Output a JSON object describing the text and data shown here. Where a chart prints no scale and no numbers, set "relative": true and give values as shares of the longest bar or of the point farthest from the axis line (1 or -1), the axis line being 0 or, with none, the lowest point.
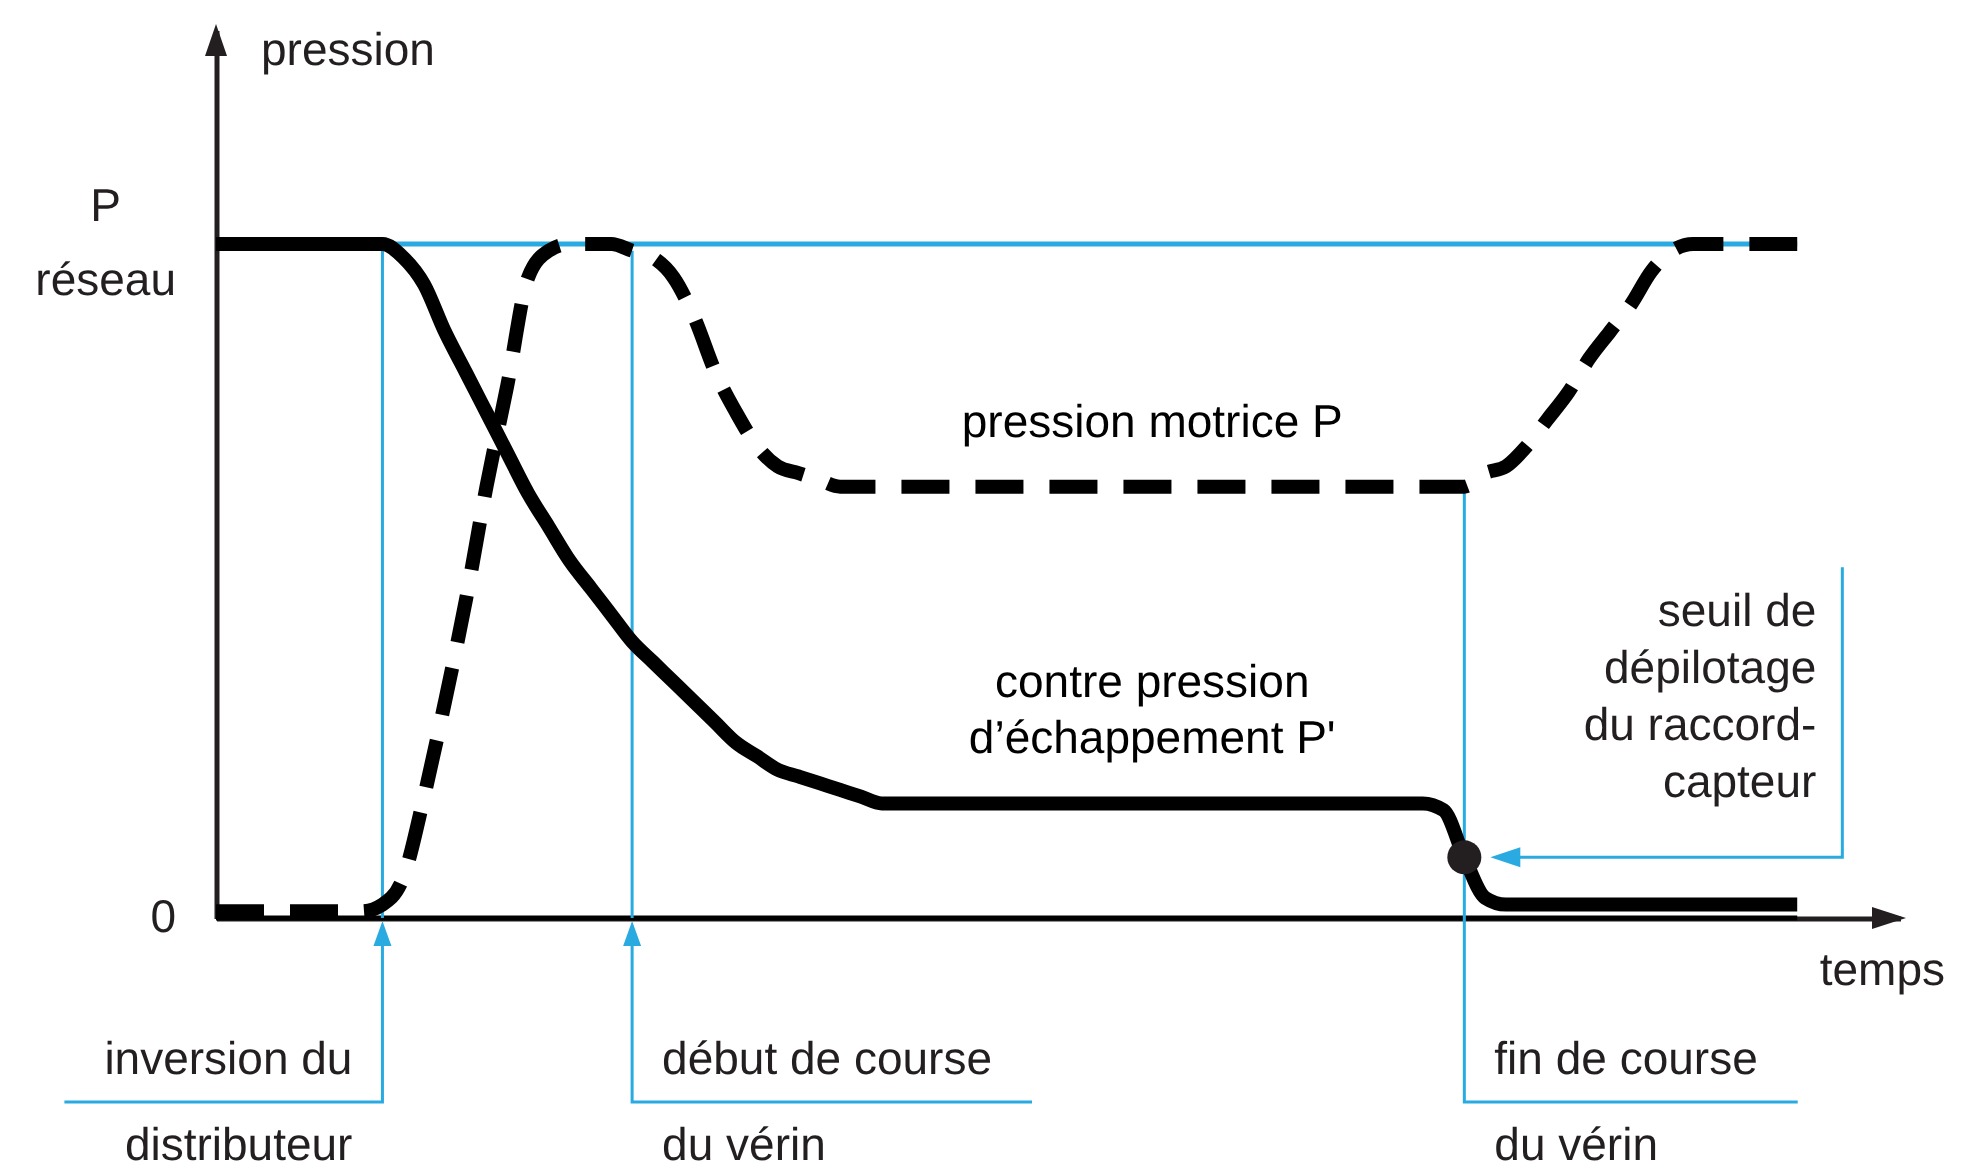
{
  "chart_data": {
    "type": "line",
    "relative": true,
    "xlabel": "temps",
    "ylabel": "pression",
    "categories": [
      null,
      null,
      null,
      null,
      null,
      null,
      null,
      null,
      null,
      null,
      null,
      null,
      null,
      null,
      null,
      null,
      null,
      null,
      null,
      null,
      null,
      null,
      null,
      null,
      null,
      null,
      null,
      null,
      null,
      null,
      null,
      null,
      null,
      null,
      null,
      null,
      null,
      null,
      null,
      null,
      null,
      null,
      null,
      null,
      null,
      null,
      null,
      null,
      null,
      null,
      null,
      null,
      null,
      null,
      null,
      null,
      null,
      null,
      null,
      null,
      null,
      null,
      null,
      null,
      null,
      null,
      null,
      null,
      null,
      null,
      null,
      null,
      null,
      null,
      null,
      null,
      null
    ],
    "series": [
      {
        "name": "contre pression d’échappement P'",
        "color": "#000000",
        "line_style": "solid",
        "values": [
          1,
          1,
          1,
          1,
          1,
          1,
          1,
          1,
          1,
          0.98,
          0.94,
          0.87,
          0.81,
          0.75,
          0.69,
          0.63,
          0.58,
          0.53,
          0.49,
          0.45,
          0.41,
          0.38,
          0.35,
          0.32,
          0.29,
          0.26,
          0.24,
          0.22,
          0.21,
          0.2,
          0.19,
          0.18,
          0.17,
          0.17,
          0.17,
          0.17,
          0.17,
          0.17,
          0.17,
          0.17,
          0.17,
          0.17,
          0.17,
          0.17,
          0.17,
          0.17,
          0.17,
          0.17,
          0.17,
          0.17,
          0.17,
          0.17,
          0.17,
          0.17,
          0.17,
          0.17,
          0.17,
          0.17,
          0.17,
          0.16,
          0.09,
          0.03,
          0.02,
          0.02,
          0.02,
          0.02,
          0.02,
          0.02,
          0.02,
          0.02,
          0.02,
          0.02,
          0.02,
          0.02,
          0.02,
          0.02,
          0.02
        ]
      },
      {
        "name": "pression motrice P",
        "color": "#000000",
        "line_style": "dashed",
        "values": [
          0.01,
          0.01,
          0.01,
          0.01,
          0.01,
          0.01,
          0.01,
          0.01,
          0.02,
          0.06,
          0.18,
          0.32,
          0.47,
          0.64,
          0.79,
          0.95,
          0.99,
          1,
          1,
          1,
          0.99,
          0.98,
          0.95,
          0.89,
          0.81,
          0.75,
          0.7,
          0.67,
          0.66,
          0.65,
          0.64,
          0.64,
          0.64,
          0.64,
          0.64,
          0.64,
          0.64,
          0.64,
          0.64,
          0.64,
          0.64,
          0.64,
          0.64,
          0.64,
          0.64,
          0.64,
          0.64,
          0.64,
          0.64,
          0.64,
          0.64,
          0.64,
          0.64,
          0.64,
          0.64,
          0.64,
          0.64,
          0.64,
          0.64,
          0.64,
          0.64,
          0.66,
          0.67,
          0.7,
          0.74,
          0.78,
          0.83,
          0.87,
          0.91,
          0.96,
          0.99,
          1,
          1,
          1,
          1,
          1,
          1
        ]
      }
    ],
    "ref_lines": [
      {
        "axis": "y",
        "value": 1,
        "label": "P réseau",
        "color": "#29abe2"
      },
      {
        "axis": "y",
        "value": 0,
        "label": "0",
        "color": "#000000"
      }
    ],
    "annotations": [
      "inversion du distributeur",
      "début de course du vérin",
      "fin de course du vérin",
      "seuil de dépilotage du raccord-capteur"
    ]
  }
}
